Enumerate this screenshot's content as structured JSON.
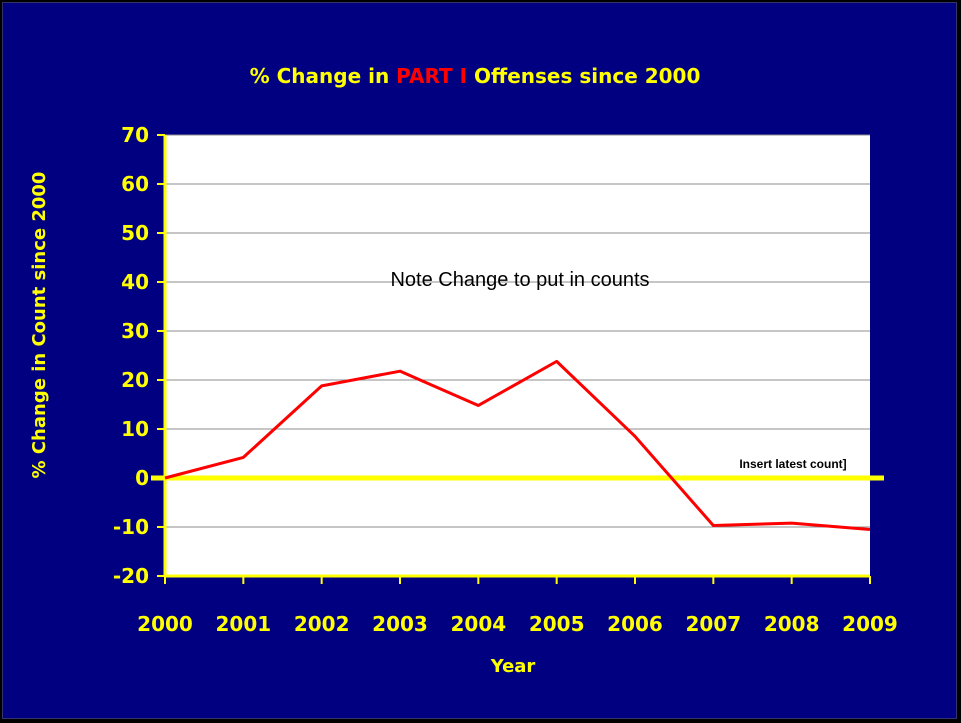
{
  "chart_data": {
    "type": "line",
    "title_parts": [
      "% Change in ",
      "PART I",
      " Offenses since 2000"
    ],
    "xlabel": "Year",
    "ylabel": "% Change in Count since 2000",
    "categories": [
      "2000",
      "2001",
      "2002",
      "2003",
      "2004",
      "2005",
      "2006",
      "2007",
      "2008",
      "2009"
    ],
    "series": [
      {
        "name": "",
        "values": [
          0,
          4.2,
          18.8,
          21.8,
          14.8,
          23.8,
          8.5,
          -9.7,
          -9.2,
          -10.5
        ],
        "color": "#FF0000"
      }
    ],
    "ylim": [
      -20,
      70
    ],
    "yticks": [
      -20,
      -10,
      0,
      10,
      20,
      30,
      40,
      50,
      60,
      70
    ],
    "grid": true,
    "annotations": {
      "note": "Note Change to put in counts",
      "insert": "Insert latest count]"
    },
    "colors": {
      "background": "#000080",
      "plot_area": "#FFFFFF",
      "text": "#FFFF00",
      "highlight": "#FF0000",
      "zero_line": "#FFFF00"
    }
  }
}
